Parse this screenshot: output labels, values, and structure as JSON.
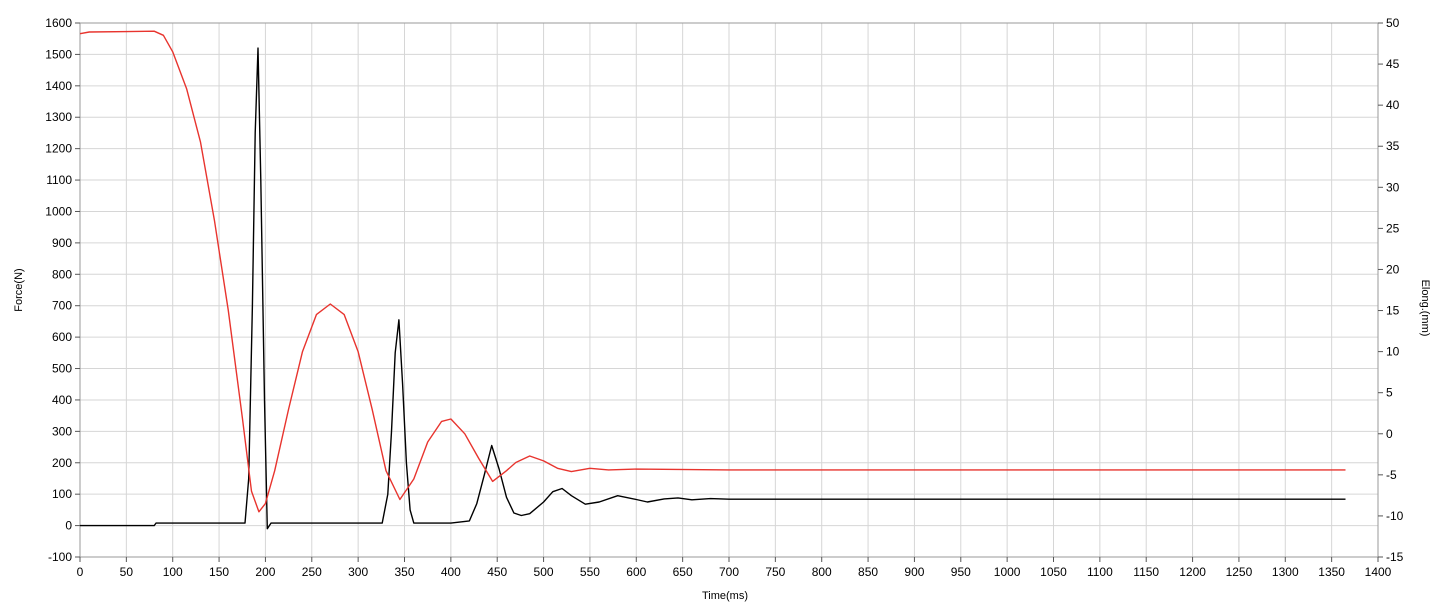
{
  "chart_data": {
    "type": "line",
    "xlabel": "Time(ms)",
    "ylabel_left": "Force(N)",
    "ylabel_right": "Elong.(mm)",
    "xlim": [
      0,
      1400
    ],
    "xticks": [
      0,
      50,
      100,
      150,
      200,
      250,
      300,
      350,
      400,
      450,
      500,
      550,
      600,
      650,
      700,
      750,
      800,
      850,
      900,
      950,
      1000,
      1050,
      1100,
      1150,
      1200,
      1250,
      1300,
      1350,
      1400
    ],
    "ylim_left": [
      -100,
      1600
    ],
    "yticks_left": [
      -100,
      0,
      100,
      200,
      300,
      400,
      500,
      600,
      700,
      800,
      900,
      1000,
      1100,
      1200,
      1300,
      1400,
      1500,
      1600
    ],
    "ylim_right": [
      -15,
      50
    ],
    "yticks_right": [
      -15,
      -10,
      -5,
      0,
      5,
      10,
      15,
      20,
      25,
      30,
      35,
      40,
      45,
      50
    ],
    "grid": true,
    "legend": "none",
    "series": [
      {
        "axis": "left",
        "color": "#000000",
        "x": [
          0,
          80,
          82,
          100,
          130,
          160,
          178,
          182,
          186,
          189,
          192,
          195,
          199,
          202,
          206,
          250,
          300,
          326,
          332,
          336,
          340,
          344,
          348,
          352,
          356,
          360,
          400,
          420,
          428,
          436,
          444,
          452,
          460,
          468,
          476,
          485,
          500,
          510,
          520,
          530,
          545,
          560,
          580,
          600,
          612,
          630,
          645,
          660,
          680,
          700,
          800,
          1000,
          1200,
          1365
        ],
        "y": [
          0,
          0,
          8,
          8,
          8,
          8,
          8,
          150,
          700,
          1250,
          1520,
          1100,
          400,
          -10,
          8,
          8,
          8,
          8,
          100,
          300,
          550,
          655,
          450,
          200,
          50,
          8,
          8,
          15,
          70,
          160,
          255,
          180,
          90,
          40,
          32,
          38,
          75,
          108,
          118,
          95,
          68,
          75,
          95,
          83,
          75,
          85,
          88,
          82,
          86,
          84,
          84,
          84,
          84,
          84
        ]
      },
      {
        "axis": "right",
        "color": "#e8342e",
        "x": [
          0,
          10,
          80,
          90,
          100,
          115,
          130,
          145,
          160,
          175,
          185,
          193,
          200,
          210,
          225,
          240,
          255,
          270,
          285,
          300,
          315,
          330,
          345,
          360,
          375,
          390,
          400,
          415,
          430,
          445,
          460,
          470,
          485,
          500,
          515,
          530,
          550,
          570,
          600,
          700,
          900,
          1100,
          1365
        ],
        "y": [
          48.7,
          48.9,
          49.0,
          48.5,
          46.5,
          42.0,
          35.5,
          26.0,
          15.0,
          2.0,
          -7.0,
          -9.5,
          -8.5,
          -4.5,
          3.0,
          10.0,
          14.5,
          15.8,
          14.5,
          10.0,
          3.0,
          -4.5,
          -8.0,
          -5.5,
          -1.0,
          1.5,
          1.8,
          0.0,
          -3.0,
          -5.8,
          -4.5,
          -3.5,
          -2.7,
          -3.3,
          -4.2,
          -4.6,
          -4.2,
          -4.4,
          -4.3,
          -4.4,
          -4.4,
          -4.4,
          -4.4
        ]
      }
    ]
  }
}
